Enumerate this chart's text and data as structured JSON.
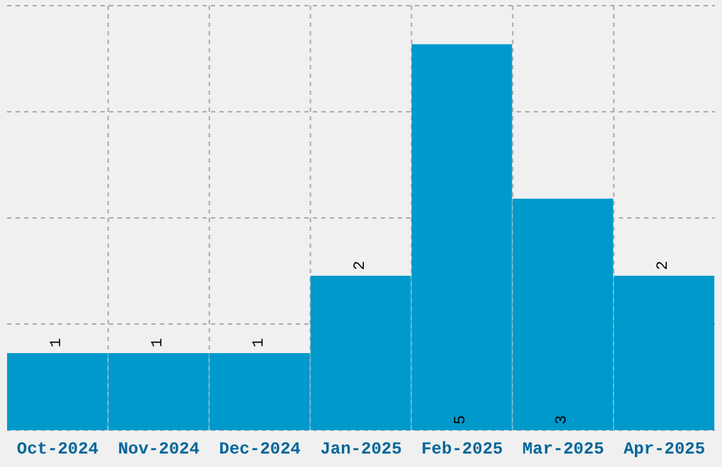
{
  "chart_data": {
    "type": "bar",
    "categories": [
      "Oct-2024",
      "Nov-2024",
      "Dec-2024",
      "Jan-2025",
      "Feb-2025",
      "Mar-2025",
      "Apr-2025"
    ],
    "values": [
      1,
      1,
      1,
      2,
      5,
      3,
      2
    ],
    "color": "#0099cc",
    "ylim": [
      0,
      5.5
    ],
    "yticks": [
      {
        "value": 0,
        "label": null
      },
      {
        "value": 1.375,
        "label": null
      },
      {
        "value": 2.75,
        "label": null
      },
      {
        "value": 4.125,
        "label": null
      },
      {
        "value": 5.5,
        "label": null
      }
    ],
    "grid": true,
    "data_labels": true,
    "tick_labels": "x"
  }
}
